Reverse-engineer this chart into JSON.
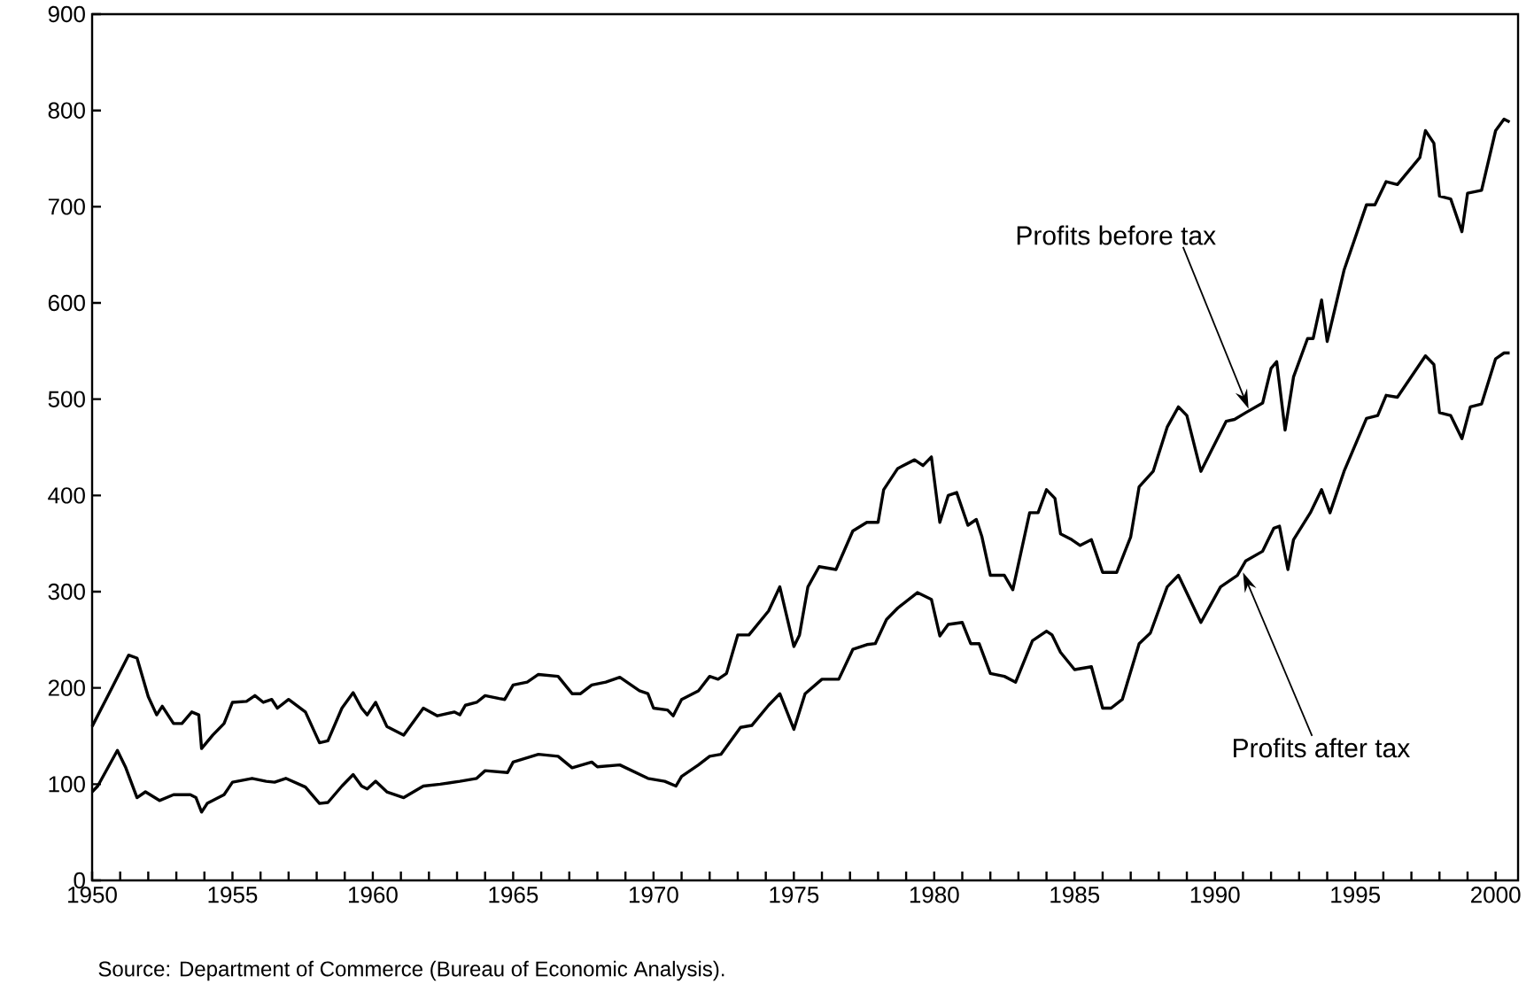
{
  "chart_data": {
    "type": "line",
    "marker": "none",
    "line_style": "solid",
    "xlim": [
      1950,
      2000.8
    ],
    "ylim": [
      0,
      900
    ],
    "yticks": [
      0,
      100,
      200,
      300,
      400,
      500,
      600,
      700,
      800,
      900
    ],
    "xticks": [
      1950,
      {
        "value": 1951,
        "label": null
      },
      {
        "value": 1952,
        "label": null
      },
      {
        "value": 1953,
        "label": null
      },
      {
        "value": 1954,
        "label": null
      },
      1955,
      {
        "value": 1956,
        "label": null
      },
      {
        "value": 1957,
        "label": null
      },
      {
        "value": 1958,
        "label": null
      },
      {
        "value": 1959,
        "label": null
      },
      1960,
      {
        "value": 1961,
        "label": null
      },
      {
        "value": 1962,
        "label": null
      },
      {
        "value": 1963,
        "label": null
      },
      {
        "value": 1964,
        "label": null
      },
      1965,
      {
        "value": 1966,
        "label": null
      },
      {
        "value": 1967,
        "label": null
      },
      {
        "value": 1968,
        "label": null
      },
      {
        "value": 1969,
        "label": null
      },
      1970,
      {
        "value": 1971,
        "label": null
      },
      {
        "value": 1972,
        "label": null
      },
      {
        "value": 1973,
        "label": null
      },
      {
        "value": 1974,
        "label": null
      },
      1975,
      {
        "value": 1976,
        "label": null
      },
      {
        "value": 1977,
        "label": null
      },
      {
        "value": 1978,
        "label": null
      },
      {
        "value": 1979,
        "label": null
      },
      1980,
      {
        "value": 1981,
        "label": null
      },
      {
        "value": 1982,
        "label": null
      },
      {
        "value": 1983,
        "label": null
      },
      {
        "value": 1984,
        "label": null
      },
      1985,
      {
        "value": 1986,
        "label": null
      },
      {
        "value": 1987,
        "label": null
      },
      {
        "value": 1988,
        "label": null
      },
      {
        "value": 1989,
        "label": null
      },
      1990,
      {
        "value": 1991,
        "label": null
      },
      {
        "value": 1992,
        "label": null
      },
      {
        "value": 1993,
        "label": null
      },
      {
        "value": 1994,
        "label": null
      },
      1995,
      {
        "value": 1996,
        "label": null
      },
      {
        "value": 1997,
        "label": null
      },
      {
        "value": 1998,
        "label": null
      },
      {
        "value": 1999,
        "label": null
      },
      2000
    ],
    "series": [
      {
        "color": "#000000",
        "x": [
          1950.0,
          1950.6,
          1951.3,
          1951.6,
          1952.0,
          1952.3,
          1952.5,
          1952.9,
          1953.2,
          1953.55,
          1953.8,
          1953.9,
          1954.3,
          1954.7,
          1955.0,
          1955.5,
          1955.8,
          1956.1,
          1956.4,
          1956.6,
          1957.0,
          1957.6,
          1958.1,
          1958.4,
          1958.9,
          1959.3,
          1959.6,
          1959.8,
          1960.1,
          1960.5,
          1961.1,
          1961.8,
          1962.3,
          1962.9,
          1963.1,
          1963.3,
          1963.7,
          1964.0,
          1964.5,
          1964.7,
          1965.0,
          1965.5,
          1965.9,
          1966.6,
          1967.1,
          1967.4,
          1967.8,
          1968.3,
          1968.8,
          1969.5,
          1969.8,
          1970.0,
          1970.5,
          1970.7,
          1971.0,
          1971.6,
          1972.0,
          1972.3,
          1972.6,
          1973.0,
          1973.4,
          1974.1,
          1974.5,
          1975.0,
          1975.2,
          1975.5,
          1975.9,
          1976.5,
          1977.1,
          1977.6,
          1978.0,
          1978.2,
          1978.7,
          1979.3,
          1979.6,
          1979.9,
          1980.2,
          1980.5,
          1980.8,
          1981.2,
          1981.5,
          1981.7,
          1982.0,
          1982.5,
          1982.8,
          1983.4,
          1983.7,
          1984.0,
          1984.3,
          1984.5,
          1984.9,
          1985.2,
          1985.6,
          1986.0,
          1986.5,
          1987.0,
          1987.3,
          1987.8,
          1988.3,
          1988.7,
          1989.0,
          1989.5,
          1990.4,
          1990.7,
          1991.1,
          1991.7,
          1992.0,
          1992.2,
          1992.5,
          1992.8,
          1993.3,
          1993.5,
          1993.8,
          1994.0,
          1994.6,
          1995.4,
          1995.7,
          1996.1,
          1996.5,
          1997.3,
          1997.5,
          1997.8,
          1998.0,
          1998.4,
          1998.8,
          1999.0,
          1999.5,
          2000.0,
          2000.3,
          2000.5
        ],
        "values": [
          160,
          194,
          234,
          231,
          191,
          172,
          181,
          163,
          163,
          175,
          172,
          137,
          151,
          163,
          185,
          186,
          192,
          185,
          188,
          179,
          188,
          175,
          143,
          145,
          179,
          195,
          179,
          172,
          185,
          160,
          151,
          179,
          171,
          175,
          172,
          182,
          185,
          192,
          189,
          188,
          203,
          206,
          214,
          212,
          194,
          194,
          203,
          206,
          211,
          197,
          194,
          179,
          177,
          171,
          188,
          197,
          212,
          209,
          215,
          255,
          255,
          280,
          305,
          243,
          255,
          305,
          326,
          323,
          363,
          372,
          372,
          406,
          428,
          437,
          431,
          440,
          372,
          400,
          403,
          369,
          375,
          357,
          317,
          317,
          302,
          382,
          382,
          406,
          397,
          360,
          354,
          348,
          354,
          320,
          320,
          357,
          409,
          425,
          471,
          492,
          483,
          425,
          477,
          479,
          486,
          496,
          532,
          539,
          468,
          523,
          563,
          563,
          603,
          560,
          634,
          702,
          702,
          726,
          723,
          751,
          779,
          766,
          711,
          708,
          674,
          714,
          717,
          779,
          791,
          788
        ]
      },
      {
        "color": "#000000",
        "x": [
          1950.0,
          1950.2,
          1950.9,
          1951.2,
          1951.6,
          1951.9,
          1952.4,
          1952.9,
          1953.5,
          1953.7,
          1953.9,
          1954.1,
          1954.7,
          1955.0,
          1955.7,
          1956.2,
          1956.5,
          1956.9,
          1957.6,
          1958.1,
          1958.4,
          1958.9,
          1959.3,
          1959.6,
          1959.8,
          1960.1,
          1960.5,
          1961.1,
          1961.8,
          1962.4,
          1963.1,
          1963.7,
          1964.0,
          1964.8,
          1965.0,
          1965.9,
          1966.6,
          1967.1,
          1967.8,
          1968.0,
          1968.8,
          1969.8,
          1970.4,
          1970.8,
          1971.0,
          1971.6,
          1972.0,
          1972.4,
          1973.1,
          1973.5,
          1974.1,
          1974.5,
          1975.0,
          1975.4,
          1976.0,
          1976.6,
          1977.1,
          1977.6,
          1977.9,
          1978.3,
          1978.7,
          1979.4,
          1979.9,
          1980.2,
          1980.5,
          1981.0,
          1981.3,
          1981.6,
          1982.0,
          1982.5,
          1982.9,
          1983.5,
          1984.0,
          1984.2,
          1984.5,
          1985.0,
          1985.6,
          1986.0,
          1986.3,
          1986.7,
          1987.3,
          1987.7,
          1988.3,
          1988.7,
          1989.5,
          1990.2,
          1990.8,
          1991.1,
          1991.7,
          1992.1,
          1992.3,
          1992.6,
          1992.8,
          1993.4,
          1993.8,
          1994.1,
          1994.6,
          1995.4,
          1995.8,
          1996.1,
          1996.5,
          1997.5,
          1997.8,
          1998.0,
          1998.4,
          1998.8,
          1999.1,
          1999.5,
          2000.0,
          2000.3,
          2000.5
        ],
        "values": [
          92,
          98,
          135,
          117,
          86,
          92,
          83,
          89,
          89,
          86,
          71,
          80,
          89,
          102,
          106,
          103,
          102,
          106,
          97,
          80,
          81,
          98,
          110,
          98,
          95,
          103,
          92,
          86,
          98,
          100,
          103,
          106,
          114,
          112,
          123,
          131,
          129,
          117,
          123,
          118,
          120,
          106,
          103,
          98,
          108,
          120,
          129,
          131,
          159,
          161,
          182,
          194,
          157,
          194,
          209,
          209,
          240,
          245,
          246,
          271,
          283,
          299,
          292,
          254,
          266,
          268,
          246,
          246,
          215,
          212,
          206,
          249,
          259,
          255,
          237,
          219,
          222,
          179,
          179,
          188,
          246,
          257,
          305,
          317,
          268,
          305,
          317,
          332,
          342,
          366,
          368,
          323,
          354,
          382,
          406,
          382,
          425,
          480,
          483,
          504,
          502,
          545,
          536,
          486,
          483,
          459,
          492,
          495,
          542,
          548,
          548
        ]
      }
    ],
    "annotations": [
      {
        "text": "Profits before tax",
        "x": 1991.2,
        "y": 490
      },
      {
        "text": "Profits after tax",
        "x": 1991.0,
        "y": 320
      },
      "Source: Department of Commerce (Bureau of Economic Analysis)."
    ]
  }
}
